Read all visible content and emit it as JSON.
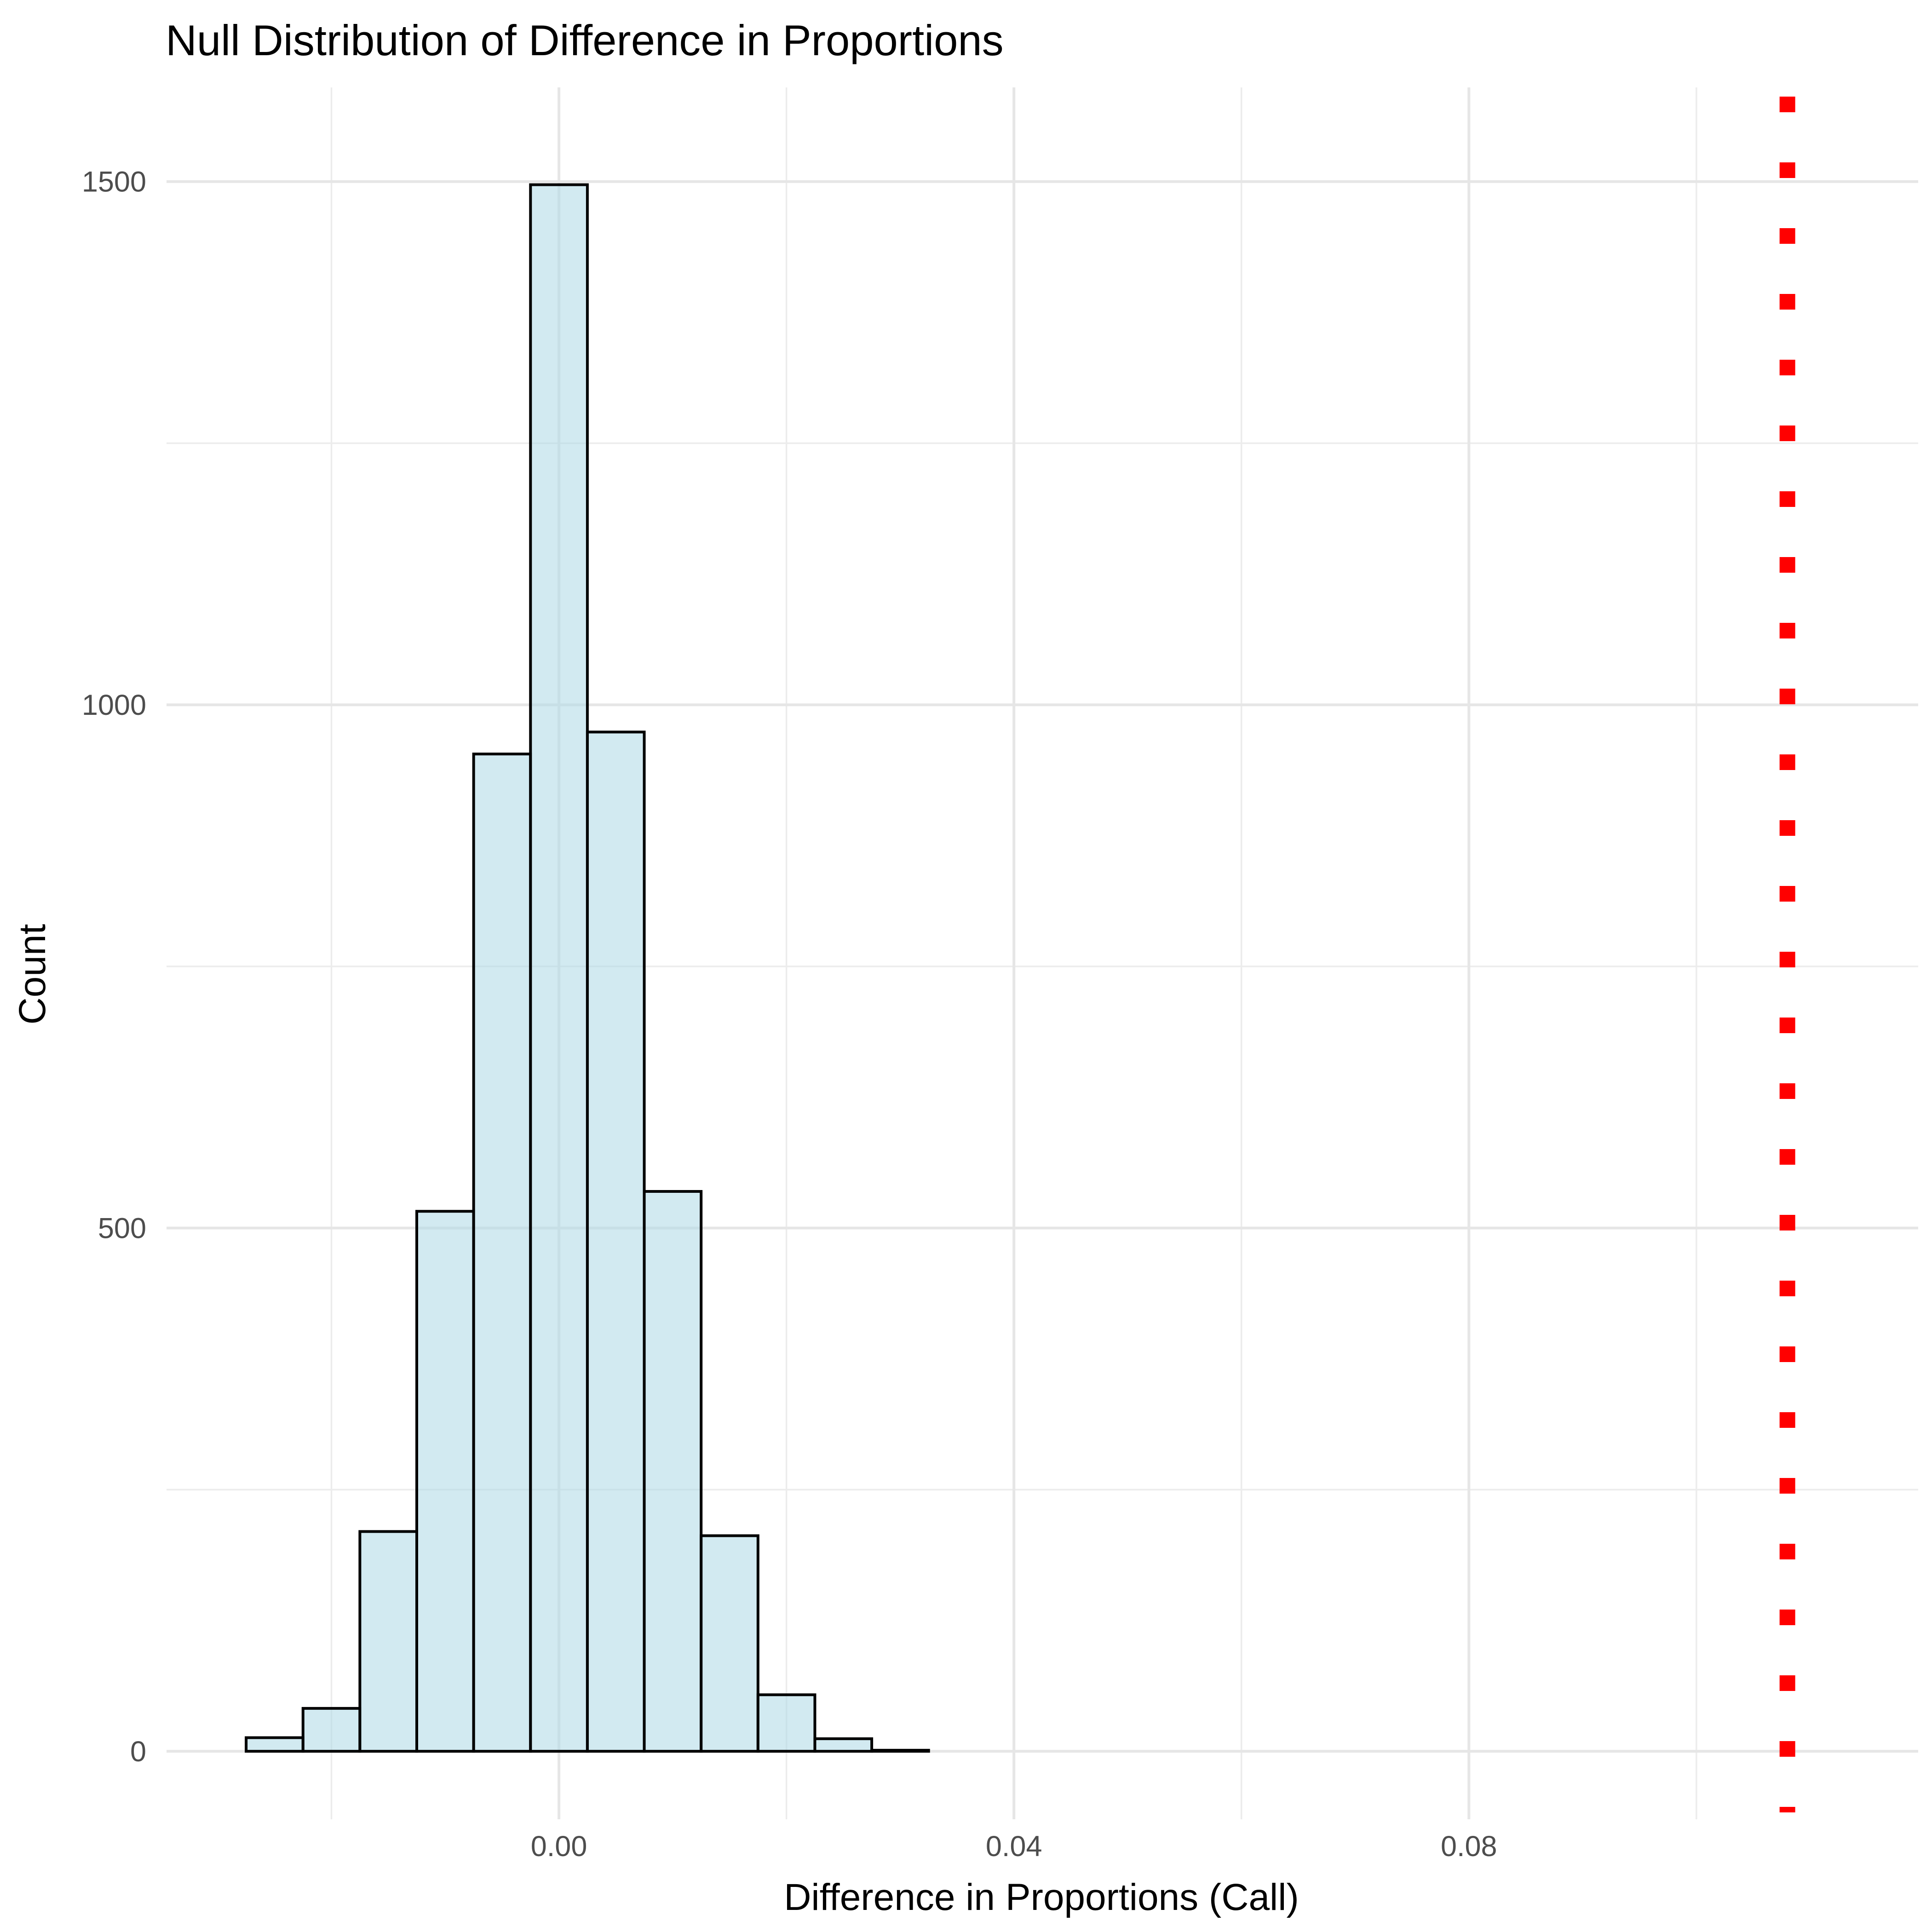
{
  "chart_data": {
    "type": "histogram",
    "title": "Null Distribution of Difference in Proportions",
    "xlabel": "Difference in Proportions (Call)",
    "ylabel": "Count",
    "xlim": [
      -0.0345,
      0.1195
    ],
    "ylim": [
      -65,
      1590
    ],
    "x_ticks": [
      0.0,
      0.04,
      0.08
    ],
    "x_tick_labels": [
      "0.00",
      "0.04",
      "0.08"
    ],
    "x_minor_ticks": [
      -0.02,
      0.02,
      0.06,
      0.1
    ],
    "y_ticks": [
      0,
      500,
      1000,
      1500
    ],
    "y_tick_labels": [
      "0",
      "500",
      "1000",
      "1500"
    ],
    "y_minor_ticks": [
      250,
      750,
      1250
    ],
    "bin_width": 0.005,
    "bin_starts": [
      -0.0275,
      -0.0225,
      -0.0175,
      -0.0125,
      -0.0075,
      -0.0025,
      0.0025,
      0.0075,
      0.0125,
      0.0175,
      0.0225,
      0.0275,
      0.0325,
      0.0375,
      0.0425,
      0.0475,
      0.0525,
      0.0575,
      0.0625,
      0.0675,
      0.0725,
      0.0775,
      0.0825,
      0.0875,
      0.0925,
      0.0975,
      0.1025,
      0.1075
    ],
    "counts": [
      13,
      41,
      210,
      516,
      953,
      1497,
      974,
      535,
      206,
      54,
      12,
      1,
      0,
      0,
      0,
      0,
      0,
      0,
      0,
      0,
      0,
      0,
      0,
      0,
      0,
      0,
      0,
      0
    ],
    "observed_statistic": 0.108,
    "bar_fill": "#add8e6",
    "bar_outline": "#000000",
    "reference_line_color": "#ff0000",
    "reference_line_style": "dotted"
  }
}
